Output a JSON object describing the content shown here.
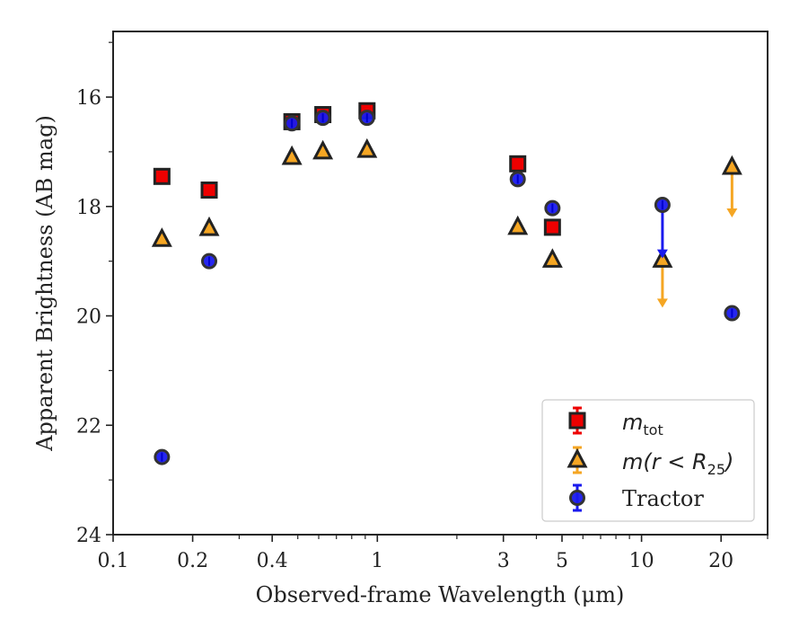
{
  "chart_data": {
    "type": "scatter",
    "x_scale": "log",
    "y_inverted": true,
    "xlabel": "Observed-frame Wavelength (μm)",
    "ylabel": "Apparent Brightness (AB mag)",
    "xlim": [
      0.1,
      30
    ],
    "ylim": [
      24,
      14.8
    ],
    "x_ticks": [
      {
        "value": 0.1,
        "label": "0.1"
      },
      {
        "value": 0.2,
        "label": "0.2"
      },
      {
        "value": 0.4,
        "label": "0.4"
      },
      {
        "value": 1,
        "label": "1"
      },
      {
        "value": 3,
        "label": "3"
      },
      {
        "value": 5,
        "label": "5"
      },
      {
        "value": 10,
        "label": "10"
      },
      {
        "value": 20,
        "label": "20"
      }
    ],
    "y_ticks": [
      {
        "value": 16,
        "label": "16"
      },
      {
        "value": 18,
        "label": "18"
      },
      {
        "value": 20,
        "label": "20"
      },
      {
        "value": 22,
        "label": "22"
      },
      {
        "value": 24,
        "label": "24"
      }
    ],
    "legend": {
      "placement": "lower-right",
      "entries": [
        {
          "math": "m",
          "sub": "tot",
          "suffix": ""
        },
        {
          "math": "m(r < R",
          "sub": "25",
          "suffix": ")"
        },
        {
          "text": "Tractor"
        }
      ]
    },
    "series": [
      {
        "marker": "square",
        "color": "#ee0000",
        "edge": "#222222",
        "points": [
          {
            "x": 0.153,
            "y": 17.45
          },
          {
            "x": 0.231,
            "y": 17.7
          },
          {
            "x": 0.475,
            "y": 16.45
          },
          {
            "x": 0.622,
            "y": 16.32
          },
          {
            "x": 0.914,
            "y": 16.25
          },
          {
            "x": 3.4,
            "y": 17.22
          },
          {
            "x": 4.6,
            "y": 18.38
          }
        ]
      },
      {
        "marker": "triangle",
        "color": "#f5a623",
        "edge": "#222222",
        "points": [
          {
            "x": 0.153,
            "y": 18.6,
            "yerr": 0.1
          },
          {
            "x": 0.231,
            "y": 18.4
          },
          {
            "x": 0.475,
            "y": 17.1
          },
          {
            "x": 0.622,
            "y": 17.0
          },
          {
            "x": 0.914,
            "y": 16.97
          },
          {
            "x": 3.4,
            "y": 18.38
          },
          {
            "x": 4.6,
            "y": 18.98
          },
          {
            "x": 12,
            "y": 18.98,
            "upper_limit_to": 19.85
          },
          {
            "x": 22,
            "y": 17.28,
            "upper_limit_to": 18.2
          }
        ]
      },
      {
        "marker": "circle",
        "color": "#1a1aee",
        "edge": "#333333",
        "points": [
          {
            "x": 0.153,
            "y": 22.58
          },
          {
            "x": 0.231,
            "y": 19.0
          },
          {
            "x": 0.475,
            "y": 16.48
          },
          {
            "x": 0.622,
            "y": 16.38
          },
          {
            "x": 0.914,
            "y": 16.38
          },
          {
            "x": 3.4,
            "y": 17.5
          },
          {
            "x": 4.6,
            "y": 18.03
          },
          {
            "x": 12,
            "y": 17.97,
            "upper_limit_to": 18.95
          },
          {
            "x": 22,
            "y": 19.95
          }
        ]
      }
    ]
  }
}
